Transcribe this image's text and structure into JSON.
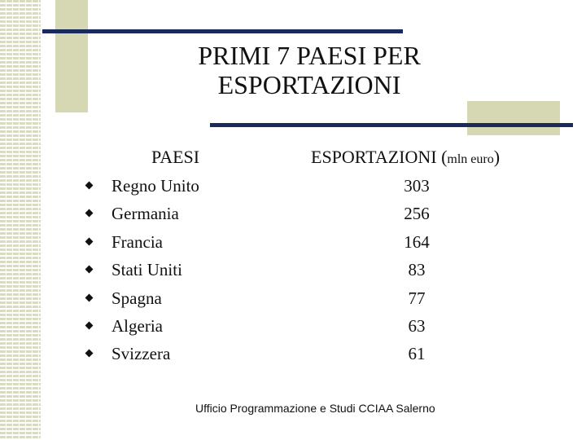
{
  "slide": {
    "title_line1": "PRIMI 7 PAESI PER",
    "title_line2": "ESPORTAZIONI",
    "header_countries": "PAESI",
    "header_exports": "ESPORTAZIONI (",
    "header_exports_unit": "mln euro",
    "header_exports_close": ")",
    "rows": [
      {
        "country": "Regno Unito",
        "value": "303"
      },
      {
        "country": "Germania",
        "value": "256"
      },
      {
        "country": "Francia",
        "value": "164"
      },
      {
        "country": "Stati Uniti",
        "value": "83"
      },
      {
        "country": "Spagna",
        "value": "77"
      },
      {
        "country": "Algeria",
        "value": "63"
      },
      {
        "country": "Svizzera",
        "value": "61"
      }
    ],
    "footer": "Ufficio Programmazione e Studi CCIAA Salerno"
  },
  "colors": {
    "accent_line": "#1b2a5c",
    "accent_block": "#d6d8b4"
  }
}
